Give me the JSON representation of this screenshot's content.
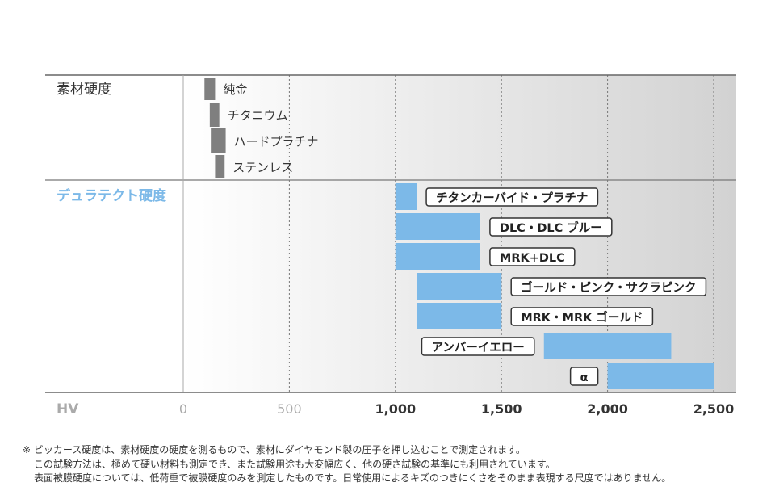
{
  "chart_data": {
    "type": "bar",
    "orientation": "horizontal-range",
    "xlabel": "HV",
    "xlim": [
      0,
      2600
    ],
    "x_ticks": [
      "0",
      "500",
      "1,000",
      "1,500",
      "2,000",
      "2,500"
    ],
    "x_tick_values": [
      0,
      500,
      1000,
      1500,
      2000,
      2500
    ],
    "grid": "vertical-dotted",
    "background": "gradient white to gray",
    "groups": [
      {
        "name": "素材硬度",
        "color": "#7f7f7f",
        "items": [
          {
            "label": "純金",
            "from": 100,
            "to": 150
          },
          {
            "label": "チタニウム",
            "from": 125,
            "to": 170
          },
          {
            "label": "ハードプラチナ",
            "from": 130,
            "to": 200
          },
          {
            "label": "ステンレス",
            "from": 150,
            "to": 195
          }
        ]
      },
      {
        "name": "デュラテクト硬度",
        "color": "#7cb9e8",
        "items": [
          {
            "label": "チタンカーバイド・プラチナ",
            "from": 1000,
            "to": 1100,
            "label_side": "right"
          },
          {
            "label": "DLC・DLC ブルー",
            "from": 1000,
            "to": 1400,
            "label_side": "right"
          },
          {
            "label": "MRK+DLC",
            "from": 1000,
            "to": 1400,
            "label_side": "right"
          },
          {
            "label": "ゴールド・ピンク・サクラピンク",
            "from": 1100,
            "to": 1500,
            "label_side": "right"
          },
          {
            "label": "MRK・MRK ゴールド",
            "from": 1100,
            "to": 1500,
            "label_side": "right"
          },
          {
            "label": "アンバーイエロー",
            "from": 1700,
            "to": 2300,
            "label_side": "left"
          },
          {
            "label": "α",
            "from": 2000,
            "to": 2500,
            "label_side": "left"
          }
        ]
      }
    ]
  },
  "notes": [
    "※ ビッカース硬度は、素材硬度の硬度を測るもので、素材にダイヤモンド製の圧子を押し込むことで測定されます。",
    "この試験方法は、極めて硬い材料も測定でき、また試験用途も大変幅広く、他の硬さ試験の基準にも利用されています。",
    "表面被膜硬度については、低荷重で被膜硬度のみを測定したものです。日常使用によるキズのつきにくさをそのまま表現する尺度ではありません。"
  ]
}
